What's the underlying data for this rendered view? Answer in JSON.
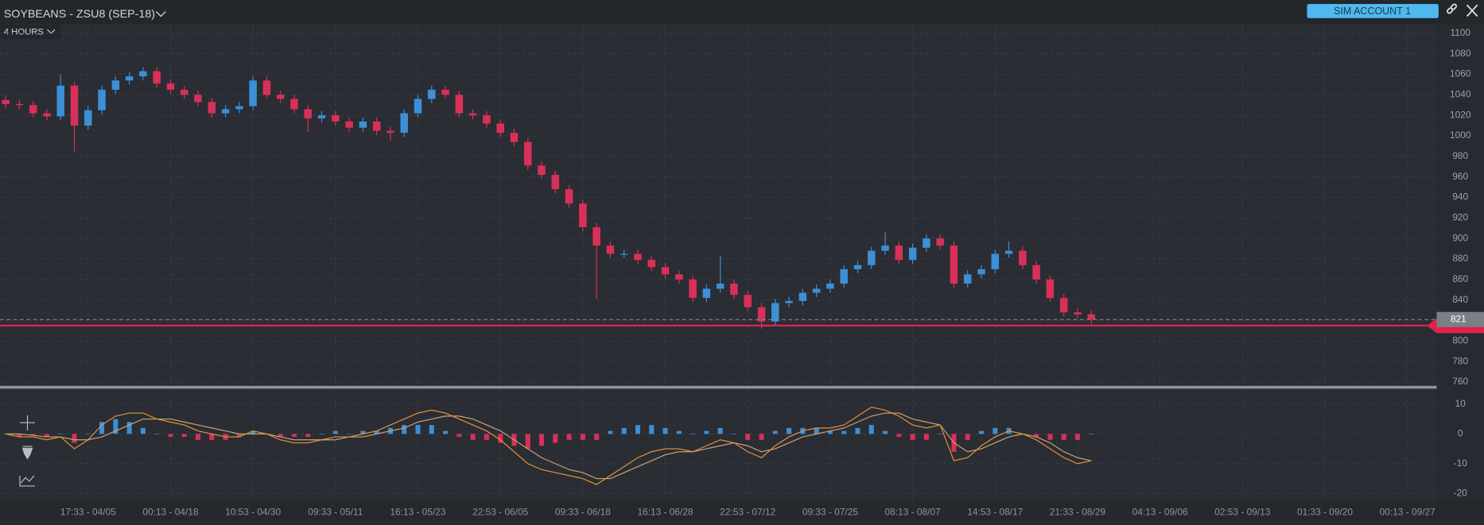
{
  "header": {
    "title": "SOYBEANS - ZSU8 (SEP-18)",
    "timeframe": "4 HOURS",
    "account": "SIM ACCOUNT 1"
  },
  "chart_data": [
    {
      "type": "candlestick",
      "open": [
        1035,
        1031,
        1030,
        1022,
        1019,
        1049,
        1010,
        1025,
        1045,
        1054,
        1058,
        1063,
        1051,
        1045,
        1040,
        1033,
        1022,
        1026,
        1029,
        1054,
        1040,
        1036,
        1026,
        1017,
        1020,
        1014,
        1008,
        1014,
        1005,
        1003,
        1022,
        1036,
        1045,
        1040,
        1022,
        1020,
        1012,
        1003,
        994,
        971,
        962,
        948,
        934,
        911,
        893,
        885,
        885,
        879,
        872,
        865,
        860,
        842,
        851,
        856,
        845,
        833,
        819,
        837,
        839,
        847,
        851,
        856,
        870,
        874,
        888,
        893,
        879,
        891,
        900,
        893,
        856,
        865,
        870,
        885,
        888,
        874,
        860,
        842,
        828,
        826
      ],
      "high": [
        1039,
        1035,
        1034,
        1026,
        1060,
        1053,
        1029,
        1049,
        1058,
        1062,
        1067,
        1067,
        1055,
        1049,
        1044,
        1037,
        1030,
        1033,
        1058,
        1058,
        1044,
        1040,
        1030,
        1024,
        1024,
        1018,
        1018,
        1018,
        1009,
        1026,
        1040,
        1049,
        1049,
        1044,
        1026,
        1024,
        1016,
        1007,
        998,
        975,
        966,
        952,
        938,
        915,
        897,
        889,
        889,
        883,
        876,
        869,
        864,
        855,
        883,
        860,
        849,
        837,
        841,
        843,
        851,
        855,
        860,
        874,
        878,
        892,
        906,
        897,
        895,
        904,
        904,
        897,
        869,
        874,
        889,
        897,
        892,
        878,
        864,
        846,
        832,
        830
      ],
      "low": [
        1027,
        1026,
        1018,
        1015,
        1015,
        985,
        1006,
        1021,
        1041,
        1050,
        1054,
        1047,
        1041,
        1036,
        1029,
        1018,
        1018,
        1022,
        1025,
        1036,
        1032,
        1022,
        1004,
        1013,
        1010,
        1004,
        1004,
        1001,
        995,
        999,
        1018,
        1032,
        1036,
        1018,
        1016,
        1008,
        999,
        990,
        967,
        958,
        944,
        930,
        907,
        841,
        881,
        881,
        875,
        868,
        861,
        856,
        838,
        838,
        847,
        841,
        829,
        812,
        815,
        833,
        835,
        843,
        847,
        852,
        866,
        870,
        884,
        875,
        875,
        887,
        889,
        852,
        852,
        861,
        866,
        881,
        870,
        856,
        838,
        824,
        822,
        817
      ],
      "close": [
        1031,
        1030,
        1022,
        1019,
        1049,
        1010,
        1025,
        1045,
        1054,
        1058,
        1063,
        1051,
        1045,
        1040,
        1033,
        1022,
        1026,
        1029,
        1054,
        1040,
        1036,
        1026,
        1017,
        1020,
        1014,
        1008,
        1014,
        1005,
        1003,
        1022,
        1036,
        1045,
        1040,
        1022,
        1020,
        1012,
        1003,
        994,
        971,
        962,
        948,
        934,
        911,
        893,
        885,
        885,
        879,
        872,
        865,
        860,
        842,
        851,
        856,
        845,
        833,
        819,
        837,
        839,
        847,
        851,
        856,
        870,
        874,
        888,
        893,
        879,
        891,
        900,
        893,
        856,
        865,
        870,
        885,
        888,
        874,
        860,
        842,
        828,
        826,
        821
      ],
      "up_color": "#3d8fd6",
      "down_color": "#d9305a",
      "ylim": [
        756.3,
        1109.2
      ],
      "yticks": [
        760,
        780,
        800,
        820,
        840,
        860,
        880,
        900,
        920,
        940,
        960,
        980,
        1000,
        1020,
        1040,
        1060,
        1080,
        1100
      ],
      "last_price": 821,
      "order_price": 815,
      "order_color": "#e0234e",
      "grid": true
    },
    {
      "type": "macd",
      "histogram": [
        0,
        -1,
        -0.5,
        -1,
        0,
        -3,
        0,
        4,
        5,
        4,
        2,
        0,
        -1,
        -1,
        -2,
        -2,
        -2,
        -1,
        1,
        0,
        -1,
        -1,
        -1,
        0,
        1,
        0,
        1,
        1,
        2,
        3,
        3,
        3,
        1,
        -1,
        -2,
        -2,
        -3,
        -4,
        -5,
        -4,
        -3,
        -2,
        -2,
        -2,
        1,
        2,
        3,
        3,
        2,
        1,
        0,
        1,
        2,
        0,
        -2,
        -2,
        1,
        2,
        2,
        2,
        1,
        1,
        2,
        3,
        1,
        -1,
        -2,
        -2,
        0,
        -6,
        -2,
        1,
        2,
        2,
        0,
        -1,
        -2,
        -2,
        -2,
        0
      ],
      "macd": [
        0,
        -1,
        -1,
        -2,
        -1,
        -5,
        -2,
        3,
        6,
        7,
        7,
        5,
        4,
        3,
        1,
        0,
        -1,
        -1,
        1,
        0,
        -2,
        -3,
        -3,
        -2,
        -1,
        -1,
        0,
        1,
        3,
        5,
        7,
        8,
        7,
        5,
        3,
        1,
        -2,
        -6,
        -10,
        -12,
        -13,
        -14,
        -15,
        -17,
        -14,
        -11,
        -8,
        -6,
        -5,
        -5,
        -6,
        -4,
        -2,
        -3,
        -6,
        -8,
        -4,
        -1,
        1,
        2,
        2,
        3,
        6,
        9,
        8,
        6,
        3,
        2,
        3,
        -9,
        -8,
        -4,
        -1,
        1,
        0,
        -2,
        -5,
        -8,
        -10,
        -9
      ],
      "signal": [
        0,
        0,
        -0.5,
        -1,
        -1,
        -2,
        -2,
        -1,
        1,
        3,
        5,
        5,
        5,
        4,
        3,
        2,
        1,
        0,
        0,
        0,
        -1,
        -2,
        -2,
        -2,
        -2,
        -1,
        -1,
        0,
        1,
        2,
        4,
        5,
        6,
        6,
        5,
        3,
        1,
        -2,
        -5,
        -8,
        -10,
        -12,
        -13,
        -15,
        -15,
        -13,
        -11,
        -9,
        -7,
        -6,
        -6,
        -5,
        -4,
        -3,
        -4,
        -6,
        -5,
        -3,
        -1,
        0,
        1,
        2,
        4,
        6,
        7,
        7,
        5,
        4,
        3,
        -3,
        -6,
        -5,
        -3,
        -1,
        0,
        -1,
        -3,
        -6,
        -8,
        -9
      ],
      "hist_up_color": "#3d8fd6",
      "hist_down_color": "#d9305a",
      "macd_color": "#e8913a",
      "signal_color": "#c9a27a",
      "ylim": [
        -22.6,
        15.2
      ],
      "yticks": [
        -20,
        -10,
        0,
        10
      ],
      "xlim": [
        -0.41,
        104.13
      ],
      "xticks": [
        {
          "value": 6,
          "label": "17:33 - 04/05"
        },
        {
          "value": 12,
          "label": "00:13 - 04/18"
        },
        {
          "value": 18,
          "label": "10:53 - 04/30"
        },
        {
          "value": 24,
          "label": "09:33 - 05/11"
        },
        {
          "value": 30,
          "label": "16:13 - 05/23"
        },
        {
          "value": 36,
          "label": "22:53 - 06/05"
        },
        {
          "value": 42,
          "label": "09:33 - 06/18"
        },
        {
          "value": 48,
          "label": "16:13 - 06/28"
        },
        {
          "value": 54,
          "label": "22:53 - 07/12"
        },
        {
          "value": 60,
          "label": "09:33 - 07/25"
        },
        {
          "value": 66,
          "label": "08:13 - 08/07"
        },
        {
          "value": 72,
          "label": "14:53 - 08/17"
        },
        {
          "value": 78,
          "label": "21:33 - 08/29"
        },
        {
          "value": 84,
          "label": "04:13 - 09/06"
        },
        {
          "value": 90,
          "label": "02:53 - 09/13"
        },
        {
          "value": 96,
          "label": "01:33 - 09/20"
        },
        {
          "value": 102,
          "label": "00:13 - 09/27"
        }
      ],
      "grid": true
    }
  ]
}
